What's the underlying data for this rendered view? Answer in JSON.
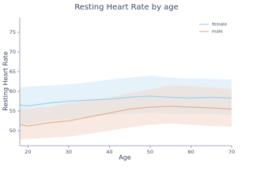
{
  "chart_data": {
    "type": "line",
    "title": "Resting Heart Rate by age",
    "xlabel": "Age",
    "ylabel": "Resting Heart Rate",
    "x": [
      18,
      20,
      25,
      30,
      35,
      40,
      45,
      50,
      55,
      60,
      65,
      70
    ],
    "series": [
      {
        "name": "female",
        "color": "#9fd3ec",
        "band_color": "#cfe8f6",
        "values": [
          56.5,
          56.3,
          57,
          57.5,
          57.8,
          58,
          58.5,
          58.8,
          58.5,
          58.3,
          58.5,
          58.3
        ],
        "upper": [
          61,
          61.2,
          61.5,
          61.8,
          62.3,
          63,
          63.5,
          64,
          63.5,
          63.2,
          63.2,
          63
        ],
        "lower": [
          51.5,
          51.8,
          52.5,
          53,
          53.5,
          54,
          54.3,
          54.5,
          54.3,
          54.2,
          54.2,
          54
        ]
      },
      {
        "name": "male",
        "color": "#e2b497",
        "band_color": "#f3d9cb",
        "values": [
          51.5,
          51.2,
          52,
          52.5,
          53.5,
          54.5,
          55.5,
          56,
          56.2,
          56,
          55.8,
          55.5
        ],
        "upper": [
          55.5,
          55.6,
          56,
          57,
          57.8,
          58.5,
          59.5,
          60.5,
          61.5,
          61.3,
          61,
          60.5
        ],
        "lower": [
          47.8,
          47.9,
          48.2,
          48.5,
          49.2,
          50,
          50.8,
          51.5,
          51.8,
          51.5,
          51.2,
          51
        ]
      }
    ],
    "xlim": [
      18,
      70
    ],
    "xticks": [
      20,
      30,
      40,
      50,
      60,
      70
    ],
    "ylim": [
      46.2,
      78.8
    ],
    "yticks": [
      50,
      55,
      60,
      65,
      70,
      75
    ],
    "legend": "upper right"
  }
}
